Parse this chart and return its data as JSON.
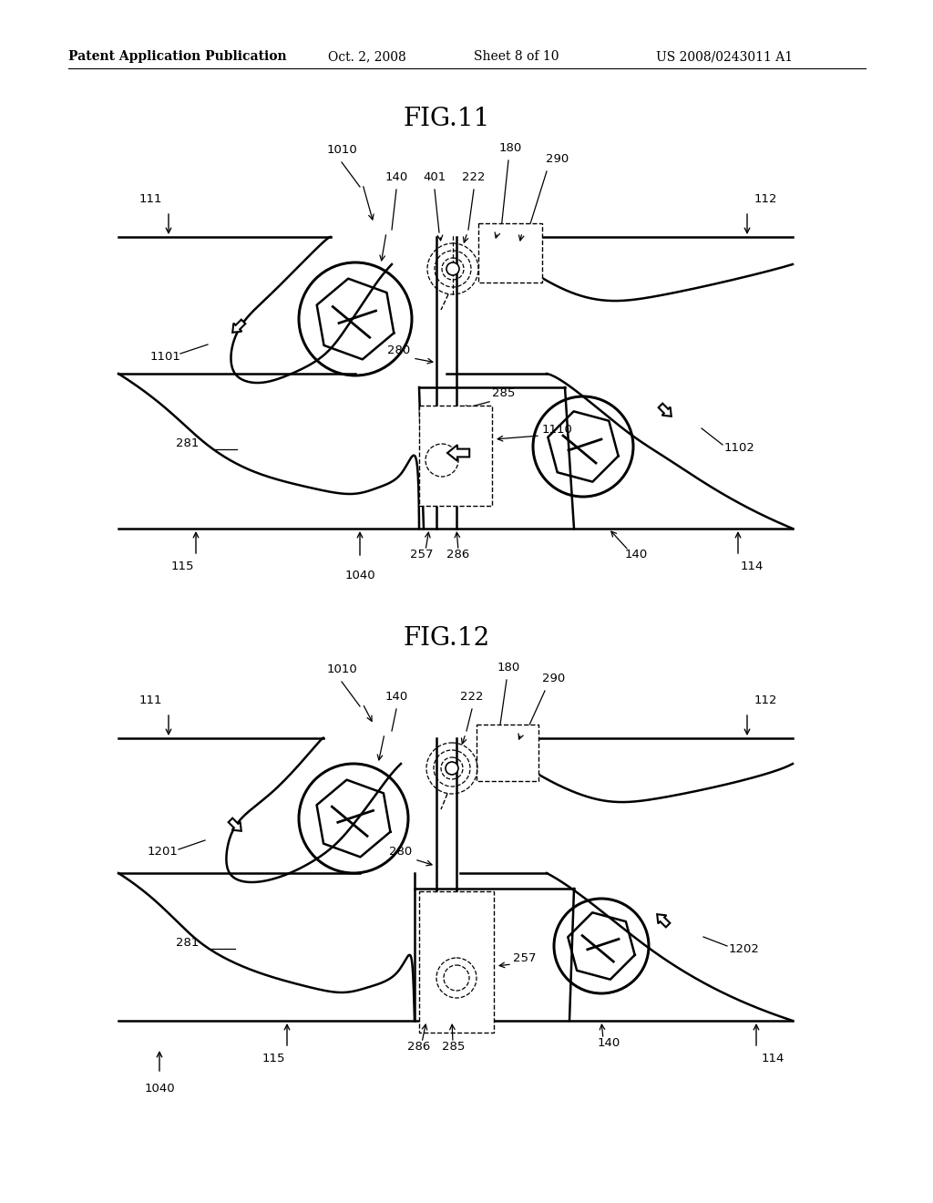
{
  "background_color": "#ffffff",
  "header_text": "Patent Application Publication",
  "header_date": "Oct. 2, 2008",
  "header_sheet": "Sheet 8 of 10",
  "header_patent": "US 2008/0243011 A1",
  "fig11_title": "FIG.11",
  "fig12_title": "FIG.12",
  "font_size_header": 10,
  "font_size_fig_title": 20,
  "font_size_label": 9.5
}
